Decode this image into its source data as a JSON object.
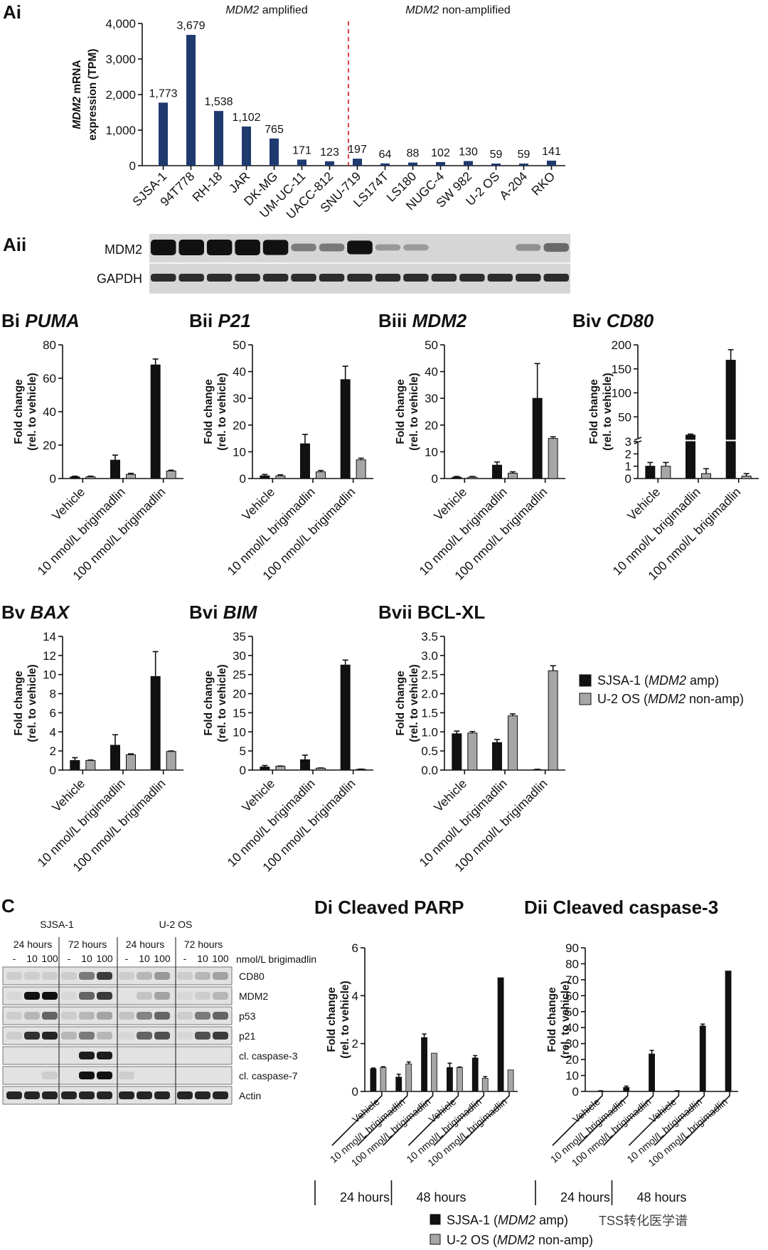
{
  "figure": {
    "panel_labels": {
      "ai": "Ai",
      "aii": "Aii",
      "bi": [
        "Bi",
        "PUMA"
      ],
      "bii": [
        "Bii",
        "P21"
      ],
      "biii": [
        "Biii",
        "MDM2"
      ],
      "biv": [
        "Biv",
        "CD80"
      ],
      "bv": [
        "Bv",
        "BAX"
      ],
      "bvi": [
        "Bvi",
        "BIM"
      ],
      "bvii": [
        "Bvii",
        "BCL-XL"
      ],
      "c": "C",
      "di": "Di Cleaved PARP",
      "dii": "Dii Cleaved caspase-3"
    },
    "b_ylabel": [
      "Fold change",
      "(rel. to vehicle)"
    ],
    "b_categories": [
      "Vehicle",
      "10 nmol/L brigimadlin",
      "100 nmol/L brigimadlin"
    ],
    "legend": [
      {
        "name": "SJSA-1",
        "tag": "MDM2",
        "suffix": "amp",
        "color": "#111111"
      },
      {
        "name": "U-2 OS",
        "tag": "MDM2",
        "suffix": "non-amp",
        "color": "#a6a6a6"
      }
    ],
    "legend_d": [
      {
        "name": "SJSA-1",
        "tag": "MDM2",
        "suffix": "amp"
      },
      {
        "name": "U-2 OS",
        "tag": "MDM2",
        "suffix": "non-amp"
      }
    ],
    "blot_aii": [
      "MDM2",
      "GAPDH"
    ],
    "panel_c": {
      "cells": [
        "SJSA-1",
        "U-2 OS"
      ],
      "times": [
        "24 hours",
        "72 hours",
        "24 hours",
        "72 hours"
      ],
      "doses": [
        "-",
        "10",
        "100"
      ],
      "dose_label": "nmol/L brigimadlin",
      "rows": [
        "CD80",
        "MDM2",
        "p53",
        "p21",
        "cl. caspase-3",
        "cl. caspase-7",
        "Actin"
      ]
    },
    "watermark": "TSS转化医学谱"
  },
  "chart_data": [
    {
      "id": "Ai",
      "type": "bar",
      "title": "MDM2 mRNA expression",
      "ylabel": "MDM2 mRNA expression (TPM)",
      "ylabel_parts": [
        "MDM2",
        " mRNA",
        "expression (TPM)"
      ],
      "ylim": [
        0,
        4000
      ],
      "yticks": [
        0,
        1000,
        2000,
        3000,
        4000
      ],
      "ytick_labels": [
        "0",
        "1,000",
        "2,000",
        "3,000",
        "4,000"
      ],
      "group_labels": [
        [
          "MDM2",
          " amplified"
        ],
        [
          "MDM2",
          " non-amplified"
        ]
      ],
      "categories": [
        "SJSA-1",
        "94T778",
        "RH-18",
        "JAR",
        "DK-MG",
        "UM-UC-11",
        "UACC-812",
        "SNU-719",
        "LS174T",
        "LS180",
        "NUGC-4",
        "SW 982",
        "U-2 OS",
        "A-204",
        "RKO"
      ],
      "values": [
        1773,
        3679,
        1538,
        1102,
        765,
        171,
        123,
        197,
        64,
        88,
        102,
        130,
        59,
        59,
        141
      ],
      "value_labels": [
        "1,773",
        "3,679",
        "1,538",
        "1,102",
        "765",
        "171",
        "123",
        "197",
        "64",
        "88",
        "102",
        "130",
        "59",
        "59",
        "141"
      ],
      "bar_color": "#1f3a6e"
    },
    {
      "id": "Bi",
      "type": "bar",
      "title": "PUMA",
      "ylim": [
        0,
        80
      ],
      "yticks": [
        0,
        20,
        40,
        60,
        80
      ],
      "series": [
        {
          "name": "SJSA-1 (MDM2 amp)",
          "values": [
            1,
            11,
            68
          ],
          "errors": [
            0.4,
            3,
            3.5
          ]
        },
        {
          "name": "U-2 OS (MDM2 non-amp)",
          "values": [
            1,
            2.5,
            4.5
          ],
          "errors": [
            0.4,
            0.6,
            0.5
          ]
        }
      ]
    },
    {
      "id": "Bii",
      "type": "bar",
      "title": "P21",
      "ylim": [
        0,
        50
      ],
      "yticks": [
        0,
        10,
        20,
        30,
        40,
        50
      ],
      "series": [
        {
          "name": "SJSA-1 (MDM2 amp)",
          "values": [
            1,
            13,
            37
          ],
          "errors": [
            0.5,
            3.5,
            5
          ]
        },
        {
          "name": "U-2 OS (MDM2 non-amp)",
          "values": [
            1,
            2.5,
            7
          ],
          "errors": [
            0.4,
            0.5,
            0.6
          ]
        }
      ]
    },
    {
      "id": "Biii",
      "type": "bar",
      "title": "MDM2",
      "ylim": [
        0,
        50
      ],
      "yticks": [
        0,
        10,
        20,
        30,
        40,
        50
      ],
      "series": [
        {
          "name": "SJSA-1 (MDM2 amp)",
          "values": [
            0.5,
            5,
            30
          ],
          "errors": [
            0.3,
            1.2,
            13
          ]
        },
        {
          "name": "U-2 OS (MDM2 non-amp)",
          "values": [
            0.5,
            2,
            15
          ],
          "errors": [
            0.3,
            0.5,
            0.6
          ]
        }
      ]
    },
    {
      "id": "Biv",
      "type": "bar",
      "title": "CD80",
      "broken_axis": true,
      "lower_range": [
        0,
        3
      ],
      "upper_range": [
        3,
        200
      ],
      "yticks": [
        0,
        1,
        2,
        3,
        50,
        100,
        150,
        200
      ],
      "series": [
        {
          "name": "SJSA-1 (MDM2 amp)",
          "values": [
            1,
            12,
            168
          ],
          "errors": [
            0.3,
            2,
            22
          ]
        },
        {
          "name": "U-2 OS (MDM2 non-amp)",
          "values": [
            1,
            0.4,
            0.2
          ],
          "errors": [
            0.3,
            0.4,
            0.2
          ]
        }
      ]
    },
    {
      "id": "Bv",
      "type": "bar",
      "title": "BAX",
      "ylim": [
        0,
        14
      ],
      "yticks": [
        0,
        2,
        4,
        6,
        8,
        10,
        12,
        14
      ],
      "series": [
        {
          "name": "SJSA-1 (MDM2 amp)",
          "values": [
            1,
            2.6,
            9.8
          ],
          "errors": [
            0.3,
            1.1,
            2.6
          ]
        },
        {
          "name": "U-2 OS (MDM2 non-amp)",
          "values": [
            1,
            1.6,
            1.95
          ],
          "errors": [
            0.05,
            0.1,
            0.05
          ]
        }
      ]
    },
    {
      "id": "Bvi",
      "type": "bar",
      "title": "BIM",
      "ylim": [
        0,
        35
      ],
      "yticks": [
        0,
        5,
        10,
        15,
        20,
        25,
        30,
        35
      ],
      "series": [
        {
          "name": "SJSA-1 (MDM2 amp)",
          "values": [
            0.8,
            2.7,
            27.5
          ],
          "errors": [
            0.4,
            1.2,
            1.3
          ]
        },
        {
          "name": "U-2 OS (MDM2 non-amp)",
          "values": [
            1,
            0.5,
            0.2
          ],
          "errors": [
            0.05,
            0.05,
            0.05
          ]
        }
      ]
    },
    {
      "id": "Bvii",
      "type": "bar",
      "title": "BCL-XL",
      "ylim": [
        0,
        3.5
      ],
      "yticks": [
        0.0,
        0.5,
        1.0,
        1.5,
        2.0,
        2.5,
        3.0,
        3.5
      ],
      "series": [
        {
          "name": "SJSA-1 (MDM2 amp)",
          "values": [
            0.95,
            0.72,
            0.01
          ],
          "errors": [
            0.07,
            0.08,
            0.01
          ]
        },
        {
          "name": "U-2 OS (MDM2 non-amp)",
          "values": [
            0.97,
            1.42,
            2.6
          ],
          "errors": [
            0.04,
            0.05,
            0.13
          ]
        }
      ]
    },
    {
      "id": "Di",
      "type": "bar",
      "title": "Cleaved PARP",
      "ylim": [
        0,
        6
      ],
      "yticks": [
        0,
        2,
        4,
        6
      ],
      "groups": [
        "24 hours",
        "48 hours"
      ],
      "series": [
        {
          "name": "SJSA-1 (MDM2 amp)",
          "values": [
            0.95,
            0.6,
            2.25,
            1.0,
            1.4,
            4.75
          ],
          "errors": [
            0.03,
            0.12,
            0.15,
            0.18,
            0.1,
            0.0
          ]
        },
        {
          "name": "U-2 OS (MDM2 non-amp)",
          "values": [
            1.0,
            1.15,
            1.6,
            1.0,
            0.55,
            0.9
          ],
          "errors": [
            0.03,
            0.08,
            0.0,
            0.02,
            0.07,
            0.0
          ]
        }
      ]
    },
    {
      "id": "Dii",
      "type": "bar",
      "title": "Cleaved caspase-3",
      "ylim": [
        0,
        90
      ],
      "yticks": [
        0,
        10,
        20,
        30,
        40,
        50,
        60,
        70,
        80,
        90
      ],
      "groups": [
        "24 hours",
        "48 hours"
      ],
      "series": [
        {
          "name": "SJSA-1 (MDM2 amp)",
          "values": [
            0.3,
            2.5,
            23.5,
            0.3,
            41,
            75.5
          ],
          "errors": [
            0.1,
            0.8,
            2.2,
            0.1,
            1.2,
            0.0
          ]
        }
      ]
    }
  ]
}
